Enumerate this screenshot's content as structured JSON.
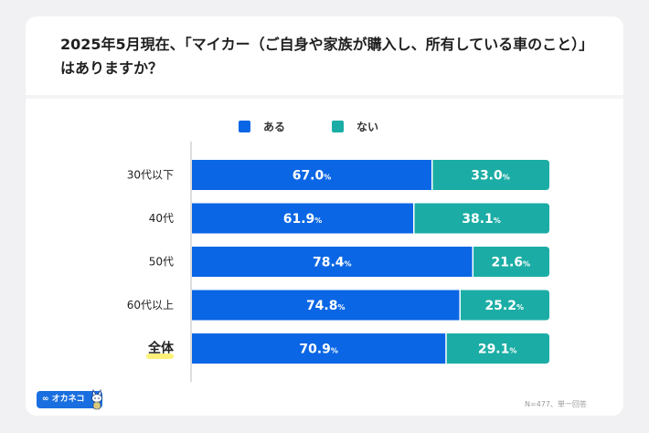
{
  "colors": {
    "background": "#f1f1f3",
    "card": "#ffffff",
    "aru": "#0a66e4",
    "nai": "#1bada5",
    "highlight": "#fff07a"
  },
  "title": "2025年5月現在、「マイカー（ご自身や家族が購入し、所有している車のこと）」はありますか？",
  "logo_text": "∞ オカネコ",
  "footnote": "N=477、単一回答",
  "chart_data": {
    "type": "bar",
    "orientation": "horizontal",
    "stacked": true,
    "title": "2025年5月現在、「マイカー（ご自身や家族が購入し、所有している車のこと）」はありますか？",
    "categories": [
      "30代以下",
      "40代",
      "50代",
      "60代以上",
      "全体"
    ],
    "highlighted_category": "全体",
    "series": [
      {
        "name": "ある",
        "values": [
          67.0,
          61.9,
          78.4,
          74.8,
          70.9
        ],
        "labels": [
          "67.0",
          "61.9",
          "78.4",
          "74.8",
          "70.9"
        ]
      },
      {
        "name": "ない",
        "values": [
          33.0,
          38.1,
          21.6,
          25.2,
          29.1
        ],
        "labels": [
          "33.0",
          "38.1",
          "21.6",
          "25.2",
          "29.1"
        ]
      }
    ],
    "unit": "%",
    "xlim": [
      0,
      100
    ],
    "legend_position": "top-center",
    "grid": false
  }
}
